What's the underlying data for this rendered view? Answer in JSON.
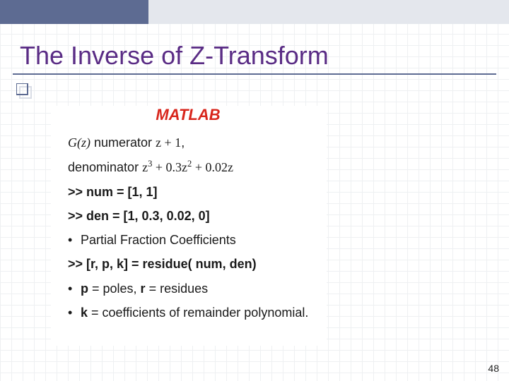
{
  "title": "The Inverse of Z-Transform",
  "matlab_label": "MATLAB",
  "lines": {
    "gz_label": "G(z)",
    "numerator_word": " numerator ",
    "num_expr_a": "z + 1",
    "num_expr_comma": ",",
    "denom_word": "denominator ",
    "denom_expr_html": "z<sup>3</sup> + 0.3z<sup>2</sup> + 0.02z",
    "cmd_num": ">> num = [1, 1]",
    "cmd_den": ">> den = [1, 0.3, 0.02, 0]",
    "bullet_pfc": "Partial Fraction Coefficients",
    "cmd_residue": ">> [r, p, k] = residue( num, den)",
    "bullet_pr_html": "<b>p</b> = poles, <b>r</b> = residues",
    "bullet_k_html": "<b>k</b> = coefficients of remainder polynomial."
  },
  "page_number": "48",
  "colors": {
    "title": "#5a2c85",
    "topbar_dark": "#5d6b92",
    "topbar_light": "#e4e7ed",
    "matlab": "#d8261c",
    "text": "#1a1a1a",
    "grid": "#eef0f2",
    "accent_light": "#d9dde6"
  }
}
